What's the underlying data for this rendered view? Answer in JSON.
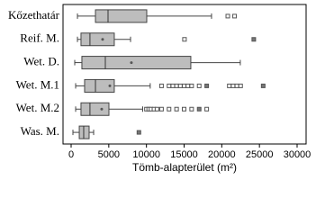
{
  "chart_data": {
    "type": "boxplot",
    "orientation": "horizontal",
    "x_label": "Tömb-alapterület (m²)",
    "categories": [
      "Kőzethatár",
      "Reif. M.",
      "Wet. D.",
      "Wet. M.1",
      "Wet. M.2",
      "Was. M."
    ],
    "boxes": [
      {
        "min": 840,
        "q1": 3230,
        "median": 4900,
        "q3": 10040,
        "max": 18640,
        "outliers": [
          20800,
          21700
        ],
        "extremes": []
      },
      {
        "min": 840,
        "q1": 1310,
        "median": 2500,
        "q3": 5730,
        "max": 7890,
        "mean": 4180,
        "outliers": [
          15050
        ],
        "extremes": [
          24250
        ]
      },
      {
        "min": 480,
        "q1": 1430,
        "median": 4540,
        "q3": 15890,
        "max": 22460,
        "mean": 8000,
        "outliers": [],
        "extremes": []
      },
      {
        "min": 600,
        "q1": 1790,
        "median": 3230,
        "q3": 5730,
        "max": 10500,
        "mean": 5140,
        "outliers": [
          12000,
          13000,
          13500,
          14000,
          14500,
          15000,
          15500,
          16000,
          17000,
          21000,
          21500,
          22000,
          22500
        ],
        "extremes": [
          18000,
          25500
        ]
      },
      {
        "min": 600,
        "q1": 1310,
        "median": 2500,
        "q3": 5020,
        "max": 9500,
        "mean": 4060,
        "outliers": [
          10000,
          10300,
          10600,
          11000,
          11400,
          12000,
          13000,
          14000,
          15000,
          16000,
          18000
        ],
        "extremes": [
          17000
        ]
      },
      {
        "min": 240,
        "q1": 1080,
        "median": 1670,
        "q3": 2390,
        "max": 2990,
        "outliers": [],
        "extremes": [
          9000
        ]
      }
    ],
    "box_color": "#bdbdbd",
    "xlim": [
      0,
      30000
    ],
    "xticks": [
      0,
      5000,
      10000,
      15000,
      20000,
      25000,
      30000
    ]
  }
}
